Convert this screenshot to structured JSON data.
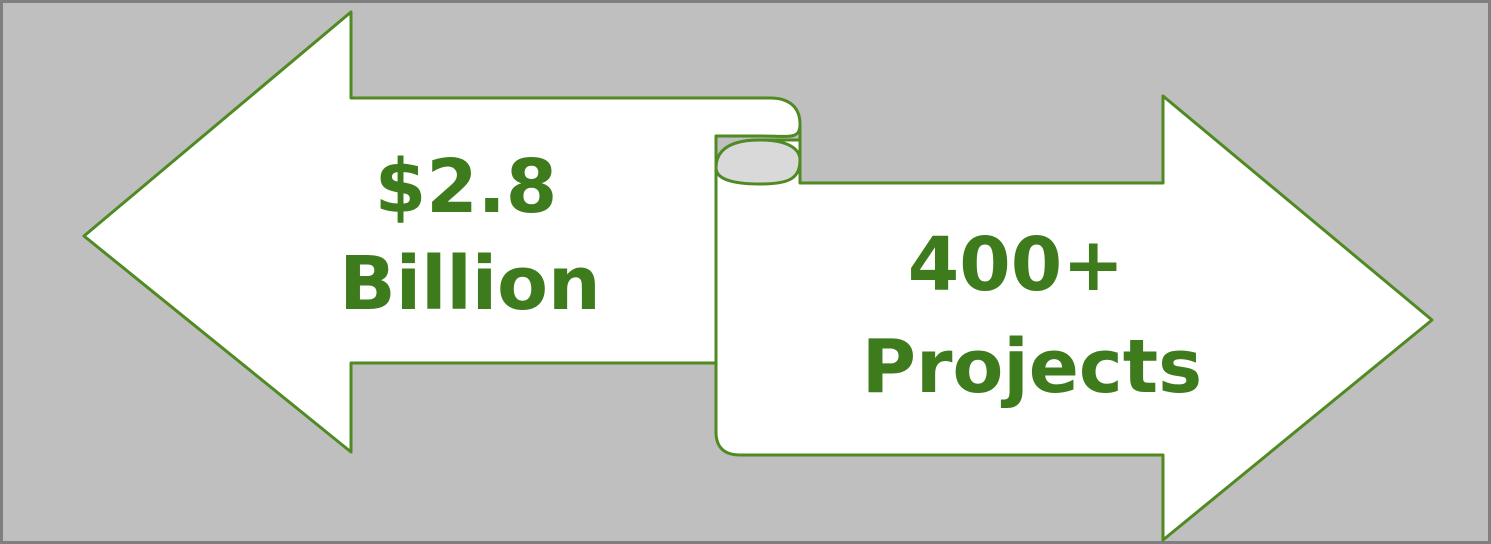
{
  "colors": {
    "background": "#bfbfbf",
    "frame": "#7f7f7f",
    "shape_fill": "#ffffff",
    "shape_stroke": "#4f8a22",
    "fold_fill": "#d9d9d9",
    "text": "#3e7b1d"
  },
  "left_arrow": {
    "line1": "$2.8",
    "line2": "Billion"
  },
  "right_arrow": {
    "line1": "400+",
    "line2": "Projects"
  }
}
